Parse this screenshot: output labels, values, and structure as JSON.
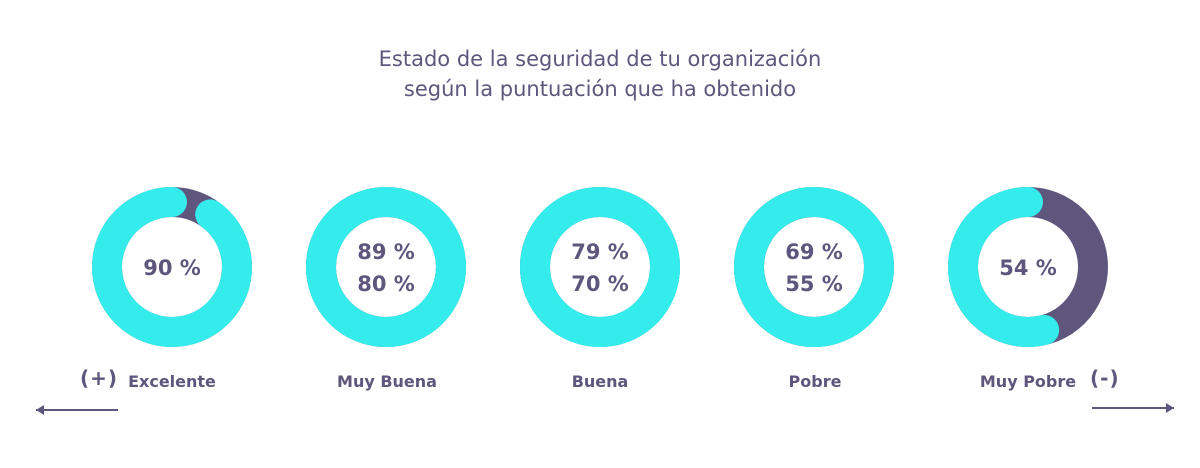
{
  "title": {
    "line1": "Estado de la seguridad de tu organización",
    "line2": "según la puntuación que ha obtenido"
  },
  "colors": {
    "primary": "#35ecec",
    "secondary": "#4aa3b3",
    "remainder": "#5e567c",
    "text": "#5e567c"
  },
  "scale": {
    "plus_label": "(+)",
    "minus_label": "(-)"
  },
  "chart_data": {
    "type": "donut",
    "title": "Estado de la seguridad de tu organización según la puntuación que ha obtenido",
    "categories": [
      "Excelente",
      "Muy Buena",
      "Buena",
      "Pobre",
      "Muy Pobre"
    ],
    "donuts": [
      {
        "category": "Excelente",
        "labels": [
          "90 %"
        ],
        "upper": 90,
        "lower": 90
      },
      {
        "category": "Muy Buena",
        "labels": [
          "89 %",
          "80 %"
        ],
        "upper": 89,
        "lower": 80
      },
      {
        "category": "Buena",
        "labels": [
          "79 %",
          "70 %"
        ],
        "upper": 79,
        "lower": 70
      },
      {
        "category": "Pobre",
        "labels": [
          "69 %",
          "55 %"
        ],
        "upper": 69,
        "lower": 55
      },
      {
        "category": "Muy Pobre",
        "labels": [
          "54 %"
        ],
        "upper": 54,
        "lower": 54
      }
    ]
  }
}
